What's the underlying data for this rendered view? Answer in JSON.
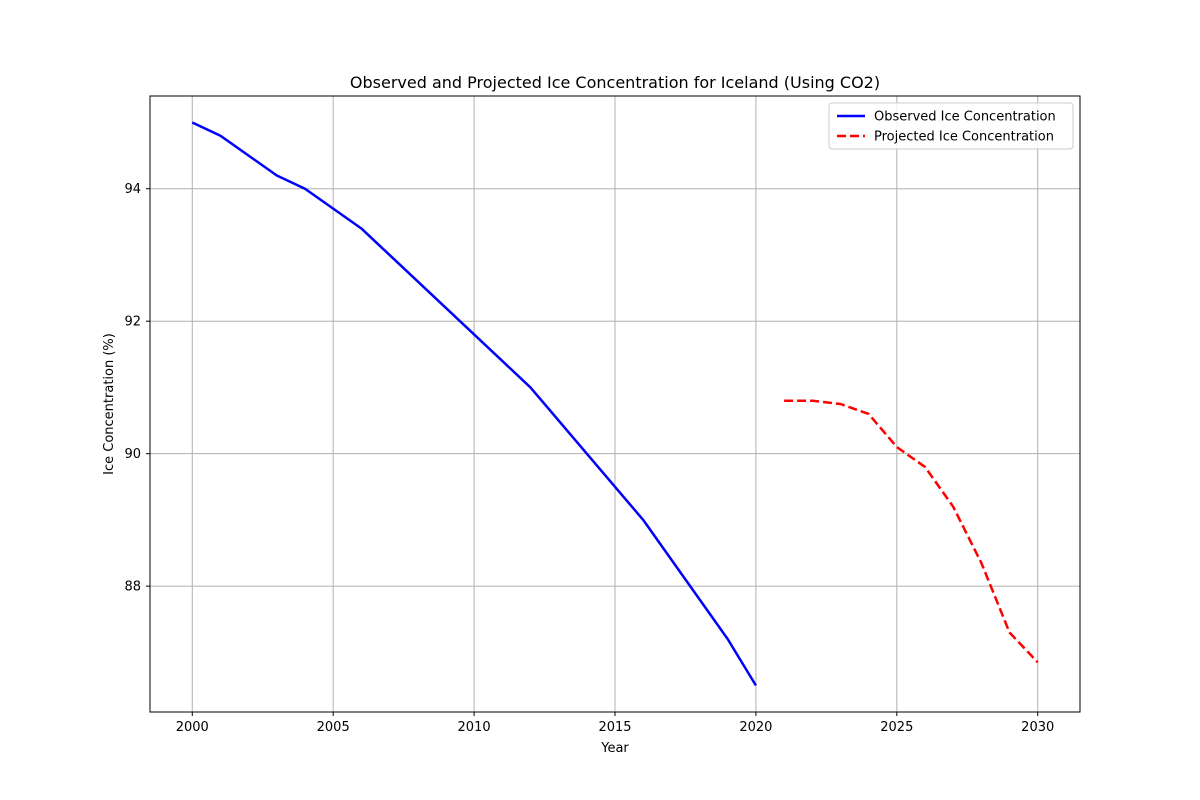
{
  "chart_data": {
    "type": "line",
    "title": "Observed and Projected Ice Concentration for Iceland (Using CO2)",
    "xlabel": "Year",
    "ylabel": "Ice Concentration (%)",
    "xlim": [
      1998.5,
      2031.5
    ],
    "ylim": [
      86.1,
      95.4
    ],
    "xticks": [
      2000,
      2005,
      2010,
      2015,
      2020,
      2025,
      2030
    ],
    "yticks": [
      88,
      90,
      92,
      94
    ],
    "grid": true,
    "legend_position": "top-right",
    "series": [
      {
        "name": "Observed Ice Concentration",
        "color": "#0000ff",
        "style": "solid",
        "x": [
          2000,
          2001,
          2002,
          2003,
          2004,
          2005,
          2006,
          2007,
          2008,
          2009,
          2010,
          2011,
          2012,
          2013,
          2014,
          2015,
          2016,
          2017,
          2018,
          2019,
          2020
        ],
        "y": [
          95.0,
          94.8,
          94.5,
          94.2,
          94.0,
          93.7,
          93.4,
          93.0,
          92.6,
          92.2,
          91.8,
          91.4,
          91.0,
          90.5,
          90.0,
          89.5,
          89.0,
          88.4,
          87.8,
          87.2,
          86.5
        ]
      },
      {
        "name": "Projected Ice Concentration",
        "color": "#ff0000",
        "style": "dashed",
        "x": [
          2021,
          2022,
          2023,
          2024,
          2025,
          2026,
          2027,
          2028,
          2029,
          2030
        ],
        "y": [
          90.8,
          90.8,
          90.75,
          90.6,
          90.1,
          89.8,
          89.2,
          88.35,
          87.3,
          86.85
        ]
      }
    ]
  }
}
